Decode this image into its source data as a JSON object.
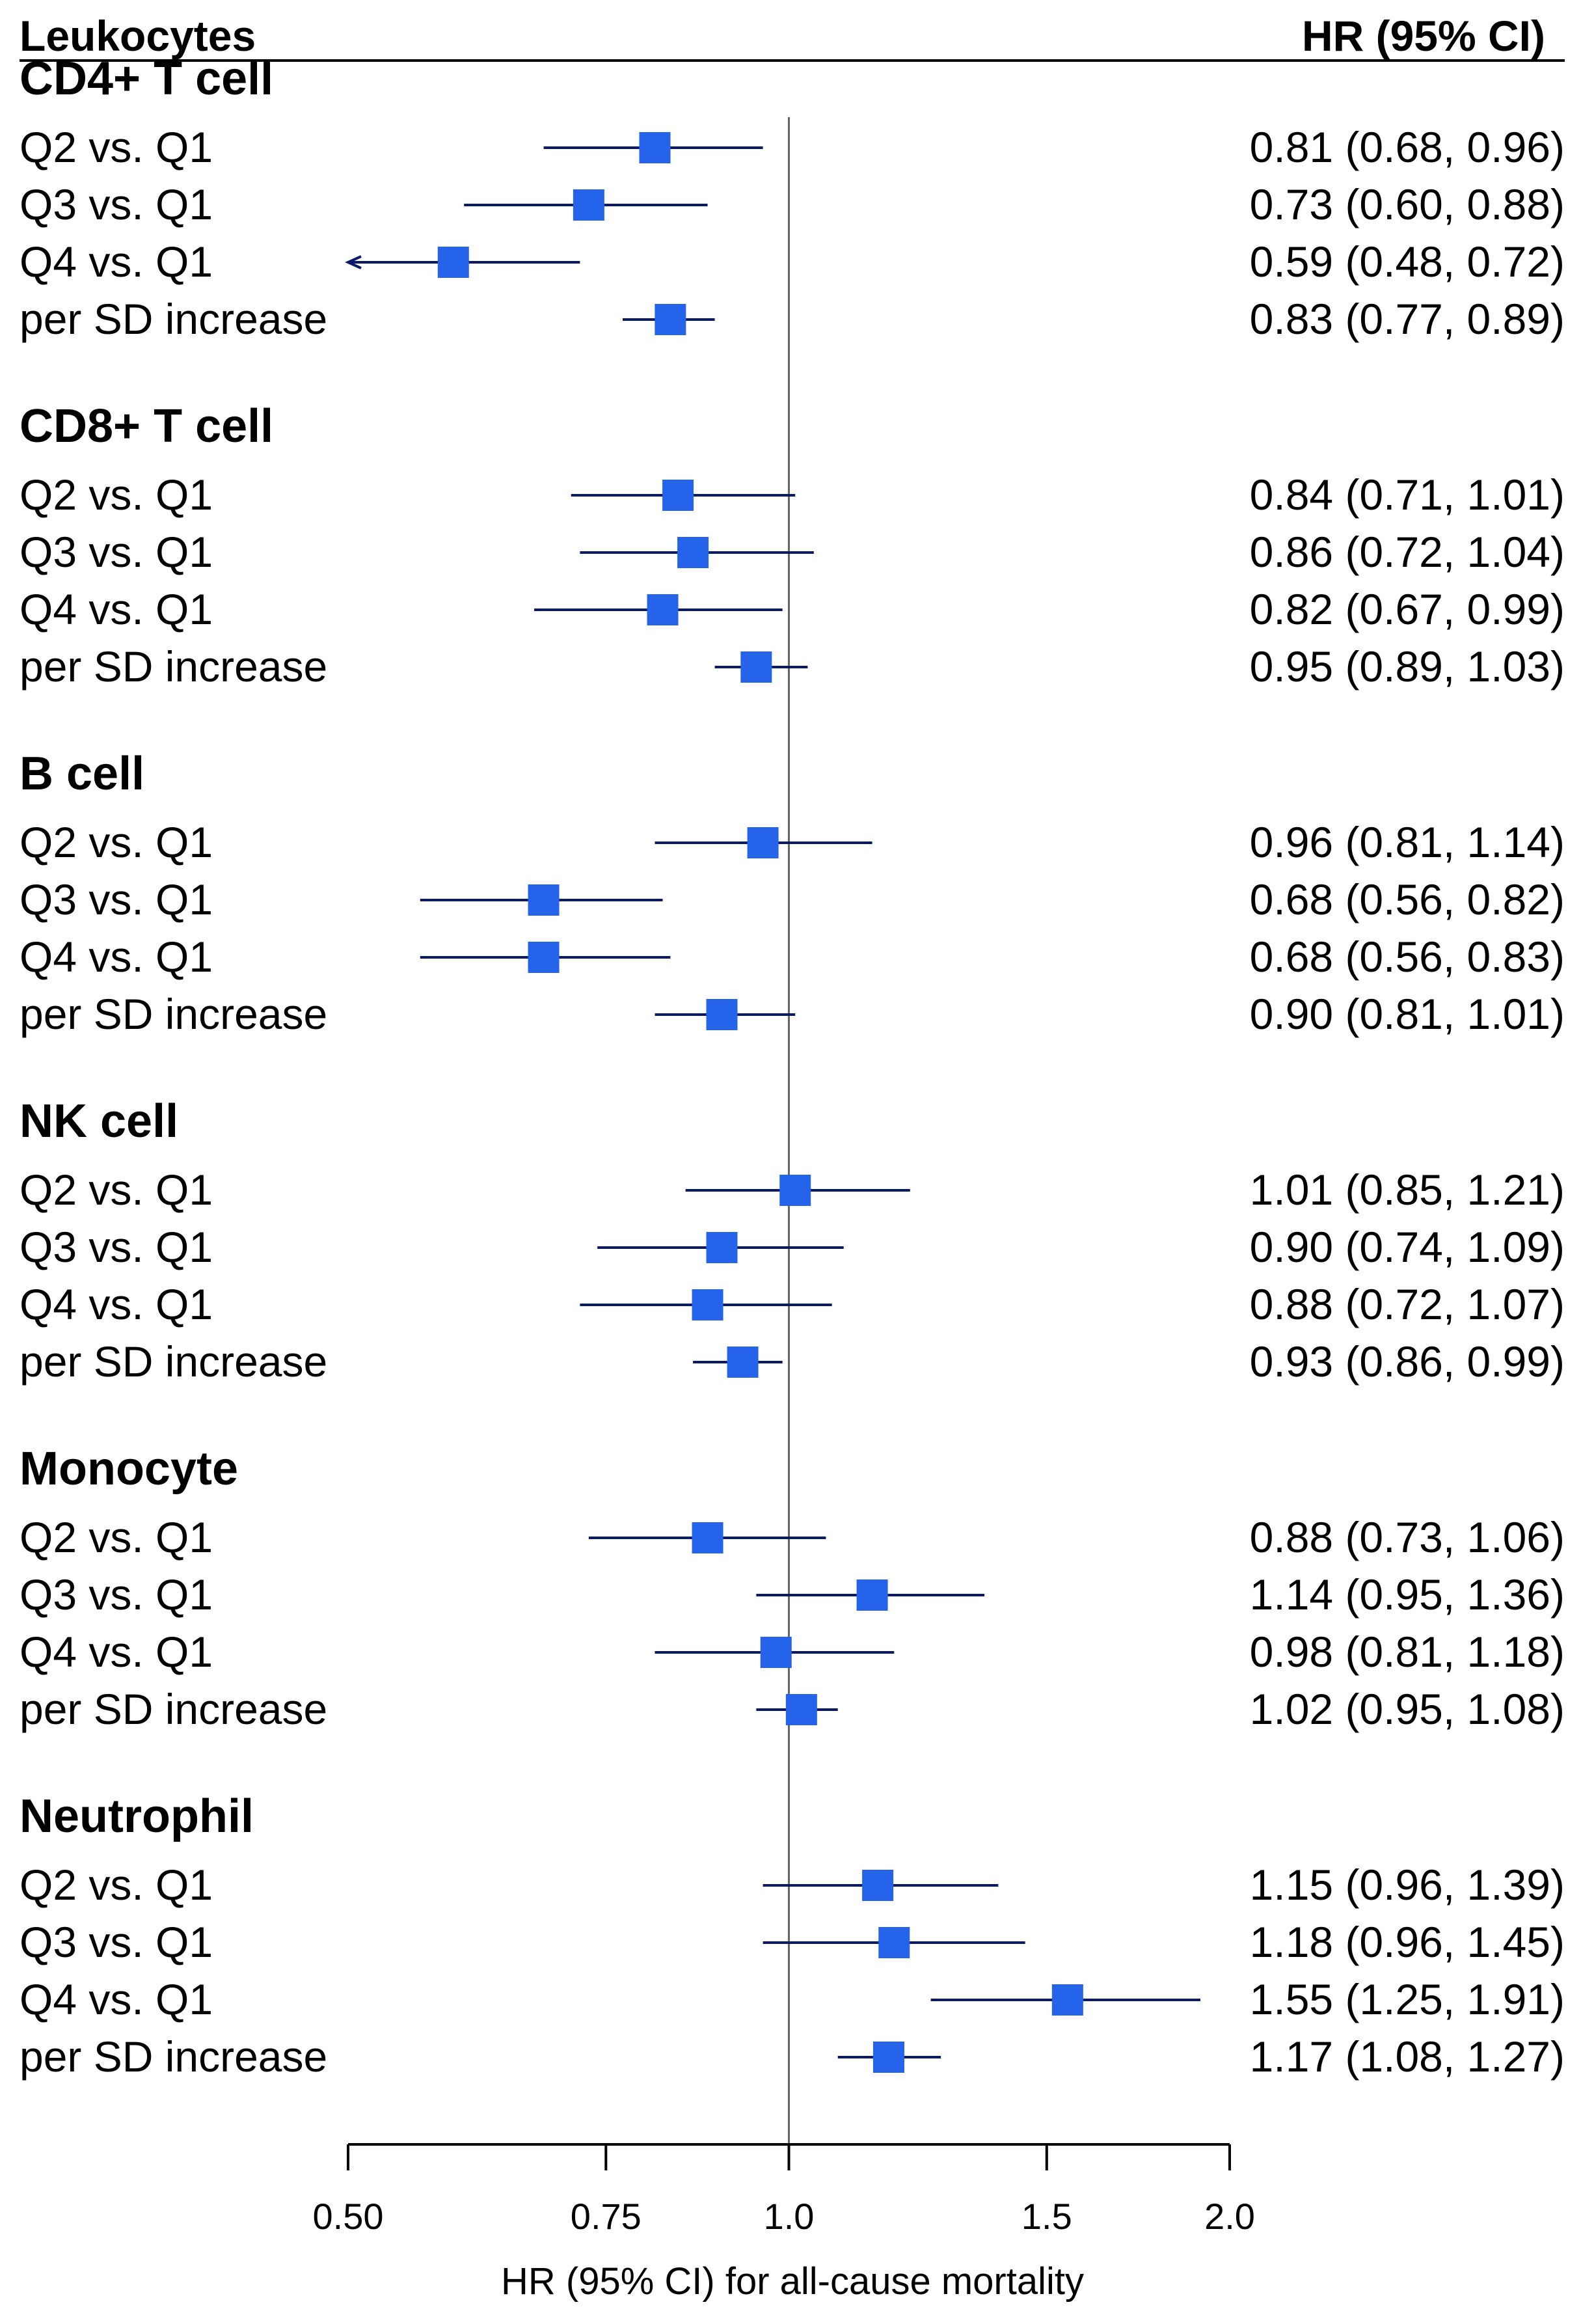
{
  "chart_data": {
    "type": "forest",
    "header_left": "Leukocytes",
    "header_right": "HR (95% CI)",
    "xlabel": "HR (95% CI) for all-cause mortality",
    "scale": "log",
    "xlim": [
      0.5,
      2.0
    ],
    "reference_line": 1.0,
    "ticks": [
      {
        "value": 0.5,
        "label": "0.50"
      },
      {
        "value": 0.75,
        "label": "0.75"
      },
      {
        "value": 1.0,
        "label": "1.0"
      },
      {
        "value": 1.5,
        "label": "1.5"
      },
      {
        "value": 2.0,
        "label": "2.0"
      }
    ],
    "groups": [
      {
        "name": "CD4+ T cell",
        "rows": [
          {
            "label": "Q2 vs. Q1",
            "hr": 0.81,
            "lo": 0.68,
            "hi": 0.96,
            "text": "0.81 (0.68, 0.96)"
          },
          {
            "label": "Q3 vs. Q1",
            "hr": 0.73,
            "lo": 0.6,
            "hi": 0.88,
            "text": "0.73 (0.60, 0.88)"
          },
          {
            "label": "Q4 vs. Q1",
            "hr": 0.59,
            "lo": 0.48,
            "hi": 0.72,
            "text": "0.59 (0.48, 0.72)"
          },
          {
            "label": "per SD increase",
            "hr": 0.83,
            "lo": 0.77,
            "hi": 0.89,
            "text": "0.83 (0.77, 0.89)"
          }
        ]
      },
      {
        "name": "CD8+ T cell",
        "rows": [
          {
            "label": "Q2 vs. Q1",
            "hr": 0.84,
            "lo": 0.71,
            "hi": 1.01,
            "text": "0.84 (0.71, 1.01)"
          },
          {
            "label": "Q3 vs. Q1",
            "hr": 0.86,
            "lo": 0.72,
            "hi": 1.04,
            "text": "0.86 (0.72, 1.04)"
          },
          {
            "label": "Q4 vs. Q1",
            "hr": 0.82,
            "lo": 0.67,
            "hi": 0.99,
            "text": "0.82 (0.67, 0.99)"
          },
          {
            "label": "per SD increase",
            "hr": 0.95,
            "lo": 0.89,
            "hi": 1.03,
            "text": "0.95 (0.89, 1.03)"
          }
        ]
      },
      {
        "name": "B cell",
        "rows": [
          {
            "label": "Q2 vs. Q1",
            "hr": 0.96,
            "lo": 0.81,
            "hi": 1.14,
            "text": "0.96 (0.81, 1.14)"
          },
          {
            "label": "Q3 vs. Q1",
            "hr": 0.68,
            "lo": 0.56,
            "hi": 0.82,
            "text": "0.68 (0.56, 0.82)"
          },
          {
            "label": "Q4 vs. Q1",
            "hr": 0.68,
            "lo": 0.56,
            "hi": 0.83,
            "text": "0.68 (0.56, 0.83)"
          },
          {
            "label": "per SD increase",
            "hr": 0.9,
            "lo": 0.81,
            "hi": 1.01,
            "text": "0.90 (0.81, 1.01)"
          }
        ]
      },
      {
        "name": "NK cell",
        "rows": [
          {
            "label": "Q2 vs. Q1",
            "hr": 1.01,
            "lo": 0.85,
            "hi": 1.21,
            "text": "1.01 (0.85, 1.21)"
          },
          {
            "label": "Q3 vs. Q1",
            "hr": 0.9,
            "lo": 0.74,
            "hi": 1.09,
            "text": "0.90 (0.74, 1.09)"
          },
          {
            "label": "Q4 vs. Q1",
            "hr": 0.88,
            "lo": 0.72,
            "hi": 1.07,
            "text": "0.88 (0.72, 1.07)"
          },
          {
            "label": "per SD increase",
            "hr": 0.93,
            "lo": 0.86,
            "hi": 0.99,
            "text": "0.93 (0.86, 0.99)"
          }
        ]
      },
      {
        "name": "Monocyte",
        "rows": [
          {
            "label": "Q2 vs. Q1",
            "hr": 0.88,
            "lo": 0.73,
            "hi": 1.06,
            "text": "0.88 (0.73, 1.06)"
          },
          {
            "label": "Q3 vs. Q1",
            "hr": 1.14,
            "lo": 0.95,
            "hi": 1.36,
            "text": "1.14 (0.95, 1.36)"
          },
          {
            "label": "Q4 vs. Q1",
            "hr": 0.98,
            "lo": 0.81,
            "hi": 1.18,
            "text": "0.98 (0.81, 1.18)"
          },
          {
            "label": "per SD increase",
            "hr": 1.02,
            "lo": 0.95,
            "hi": 1.08,
            "text": "1.02 (0.95, 1.08)"
          }
        ]
      },
      {
        "name": "Neutrophil",
        "rows": [
          {
            "label": "Q2 vs. Q1",
            "hr": 1.15,
            "lo": 0.96,
            "hi": 1.39,
            "text": "1.15 (0.96, 1.39)"
          },
          {
            "label": "Q3 vs. Q1",
            "hr": 1.18,
            "lo": 0.96,
            "hi": 1.45,
            "text": "1.18 (0.96, 1.45)"
          },
          {
            "label": "Q4 vs. Q1",
            "hr": 1.55,
            "lo": 1.25,
            "hi": 1.91,
            "text": "1.55 (1.25, 1.91)"
          },
          {
            "label": "per SD increase",
            "hr": 1.17,
            "lo": 1.08,
            "hi": 1.27,
            "text": "1.17 (1.08, 1.27)"
          }
        ]
      }
    ],
    "colors": {
      "marker": "#2563eb",
      "ci_line": "#0a1a6b",
      "ref_line": "#666666",
      "axis": "#000000"
    }
  }
}
